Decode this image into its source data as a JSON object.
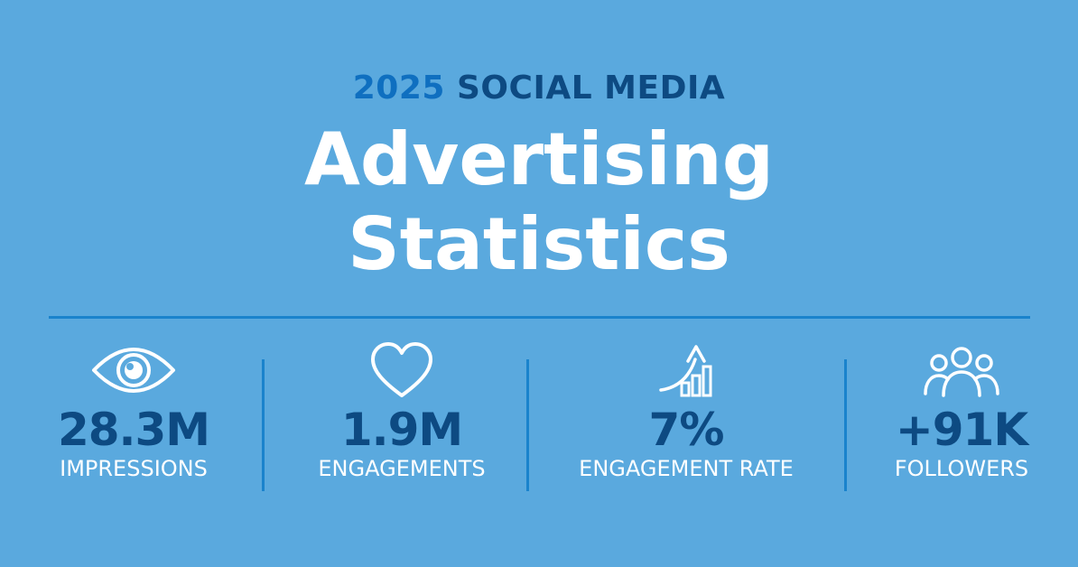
{
  "header": {
    "year": "2025",
    "subtitle": "SOCIAL MEDIA",
    "title_line1": "Advertising",
    "title_line2": "Statistics"
  },
  "colors": {
    "background": "#5aa9de",
    "accent_dark": "#0d4a82",
    "accent_blue": "#0f6fc0",
    "divider": "#1a83cc",
    "text_white": "#ffffff"
  },
  "stats": [
    {
      "icon": "eye-icon",
      "value": "28.3M",
      "label": "IMPRESSIONS"
    },
    {
      "icon": "heart-icon",
      "value": "1.9M",
      "label": "ENGAGEMENTS"
    },
    {
      "icon": "growth-chart-icon",
      "value": "7%",
      "label": "ENGAGEMENT RATE"
    },
    {
      "icon": "people-group-icon",
      "value": "+91K",
      "label": "FOLLOWERS"
    }
  ]
}
